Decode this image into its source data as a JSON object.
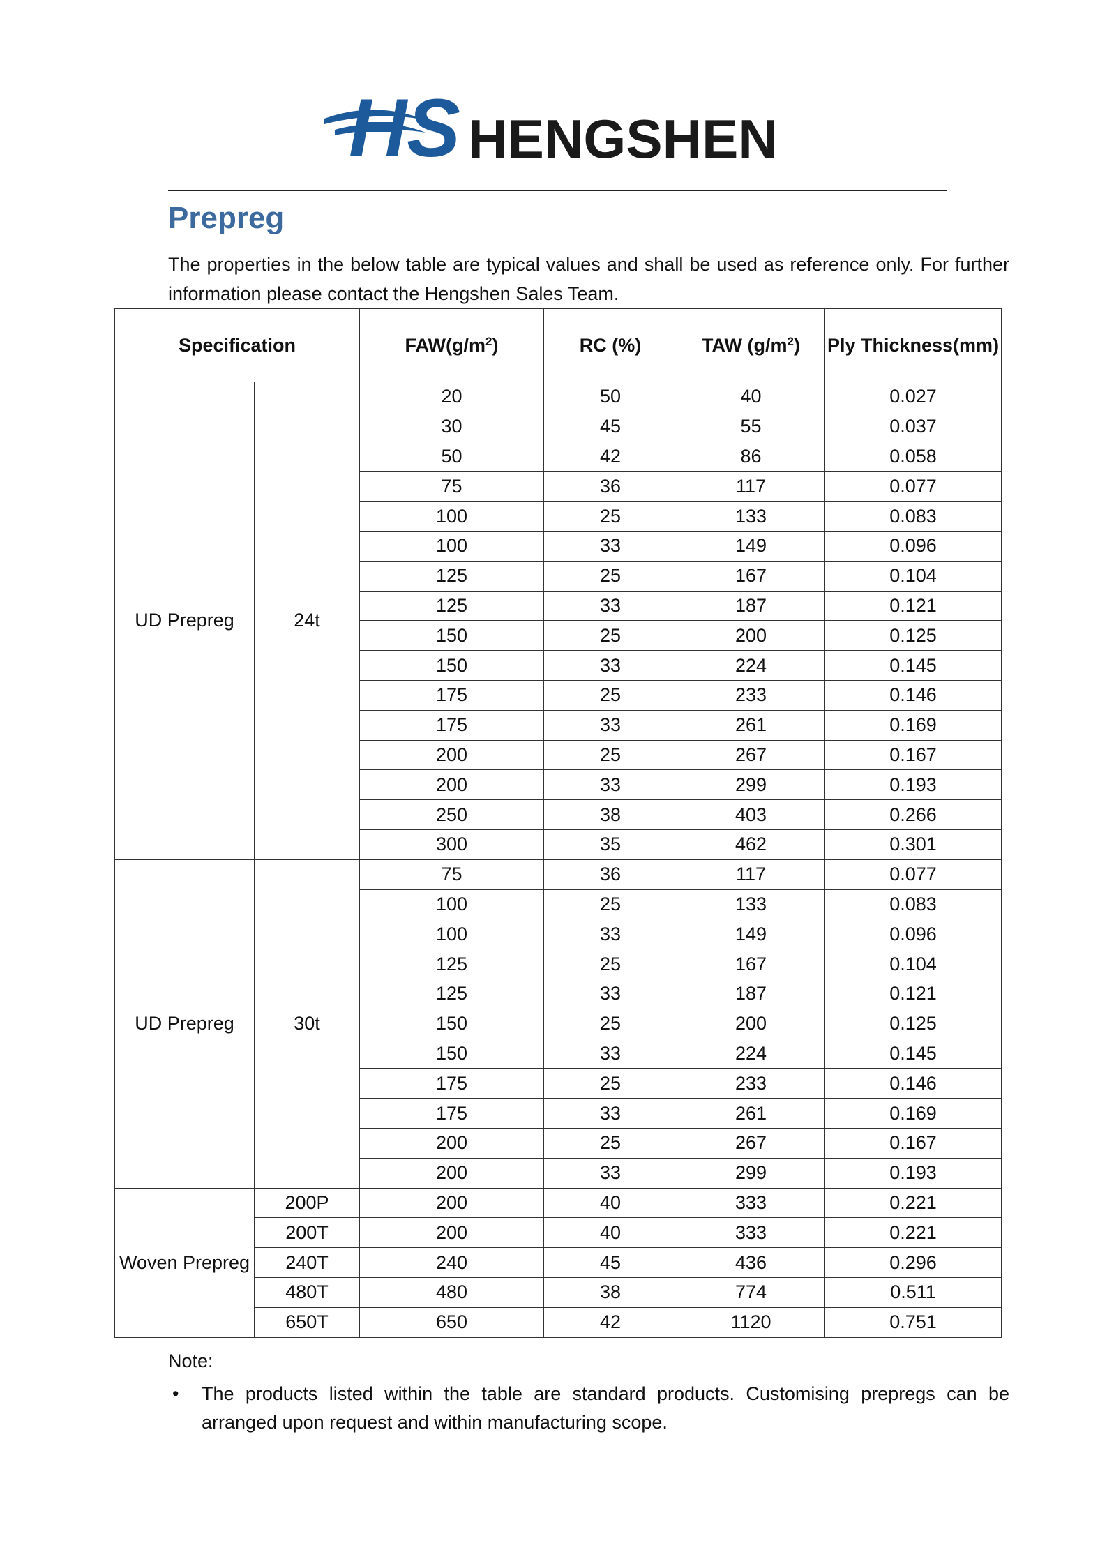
{
  "header": {
    "logo_mark": "HS",
    "logo_text": "HENGSHEN"
  },
  "title": "Prepreg",
  "intro": "The properties in the below table are typical values and shall be used as reference only. For further information please contact the Hengshen Sales Team.",
  "table": {
    "header": [
      "Specification",
      {
        "text": "FAW(g/m",
        "sup": "2",
        "after": ")"
      },
      "RC (%)",
      {
        "text": "TAW (g/m",
        "sup": "2",
        "after": ")"
      },
      "Ply Thickness(mm)"
    ],
    "groups": [
      {
        "name": "UD Prepreg",
        "grade": "24t",
        "rows": [
          [
            20,
            50,
            40,
            0.027
          ],
          [
            30,
            45,
            55,
            0.037
          ],
          [
            50,
            42,
            86,
            0.058
          ],
          [
            75,
            36,
            117,
            0.077
          ],
          [
            100,
            25,
            133,
            0.083
          ],
          [
            100,
            33,
            149,
            0.096
          ],
          [
            125,
            25,
            167,
            0.104
          ],
          [
            125,
            33,
            187,
            0.121
          ],
          [
            150,
            25,
            200,
            0.125
          ],
          [
            150,
            33,
            224,
            0.145
          ],
          [
            175,
            25,
            233,
            0.146
          ],
          [
            175,
            33,
            261,
            0.169
          ],
          [
            200,
            25,
            267,
            0.167
          ],
          [
            200,
            33,
            299,
            0.193
          ],
          [
            250,
            38,
            403,
            0.266
          ],
          [
            300,
            35,
            462,
            0.301
          ]
        ]
      },
      {
        "name": "UD Prepreg",
        "grade": "30t",
        "rows": [
          [
            75,
            36,
            117,
            0.077
          ],
          [
            100,
            25,
            133,
            0.083
          ],
          [
            100,
            33,
            149,
            0.096
          ],
          [
            125,
            25,
            167,
            0.104
          ],
          [
            125,
            33,
            187,
            0.121
          ],
          [
            150,
            25,
            200,
            0.125
          ],
          [
            150,
            33,
            224,
            0.145
          ],
          [
            175,
            25,
            233,
            0.146
          ],
          [
            175,
            33,
            261,
            0.169
          ],
          [
            200,
            25,
            267,
            0.167
          ],
          [
            200,
            33,
            299,
            0.193
          ]
        ]
      },
      {
        "name": "Woven Prepreg",
        "grades": [
          "200P",
          "200T",
          "240T",
          "480T",
          "650T"
        ],
        "rows": [
          [
            200,
            40,
            333,
            0.221
          ],
          [
            200,
            40,
            333,
            0.221
          ],
          [
            240,
            45,
            436,
            0.296
          ],
          [
            480,
            38,
            774,
            0.511
          ],
          [
            650,
            42,
            1120,
            0.751
          ]
        ]
      }
    ]
  },
  "note": {
    "label": "Note:",
    "items": [
      "The products listed within the table are standard products. Customising prepregs can be arranged upon request and within manufacturing scope."
    ]
  }
}
